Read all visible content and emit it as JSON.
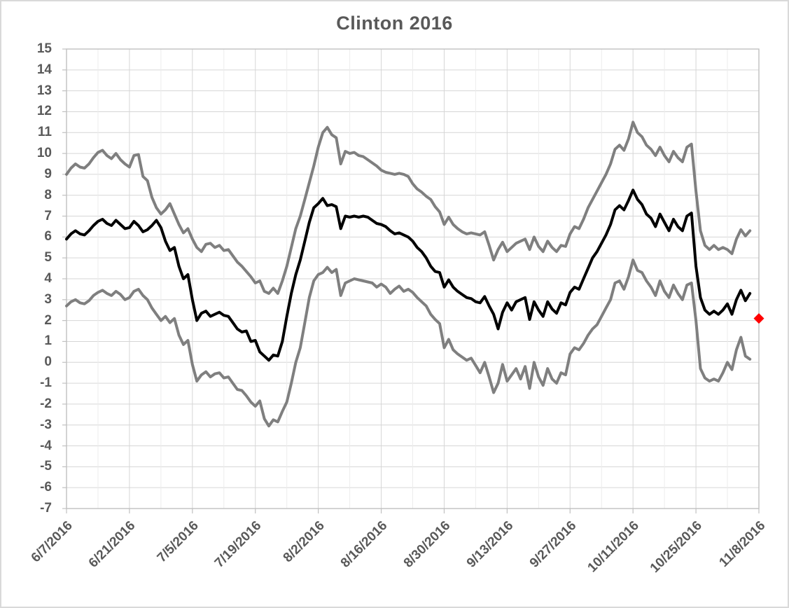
{
  "title": "Clinton 2016",
  "colors": {
    "line_black": "#000000",
    "line_gray": "#7f7f7f",
    "marker_red": "#ff0000",
    "grid_major": "#d6d6d6",
    "grid_minor": "#ececec",
    "axis_line": "#c0c0c0",
    "label_text": "#595959"
  },
  "chart_data": {
    "type": "line",
    "title": "Clinton 2016",
    "legend": false,
    "grid": true,
    "x_axis": {
      "start_date": "6/7/2016",
      "end_date": "11/8/2016",
      "total_days": 154,
      "tick_interval_days": 14,
      "minor_gridline_interval_days": 7,
      "tick_labels": [
        "6/7/2016",
        "6/21/2016",
        "7/5/2016",
        "7/19/2016",
        "8/2/2016",
        "8/16/2016",
        "8/30/2016",
        "9/13/2016",
        "9/27/2016",
        "10/11/2016",
        "10/25/2016",
        "11/8/2016"
      ]
    },
    "y_axis": {
      "min": -7,
      "max": 15,
      "tick_step": 1,
      "tick_labels": [
        "15",
        "14",
        "13",
        "12",
        "11",
        "10",
        "9",
        "8",
        "7",
        "6",
        "5",
        "4",
        "3",
        "2",
        "1",
        "0",
        "-1",
        "-2",
        "-3",
        "-4",
        "-5",
        "-6",
        "-7"
      ]
    },
    "series": [
      {
        "name": "upper_band",
        "color": "#7f7f7f",
        "start_date": "6/7/2016",
        "interval_days": 1,
        "values": [
          9.0,
          9.3,
          9.5,
          9.35,
          9.3,
          9.5,
          9.8,
          10.05,
          10.15,
          9.9,
          9.75,
          10.0,
          9.7,
          9.5,
          9.35,
          9.9,
          9.95,
          8.9,
          8.7,
          7.9,
          7.4,
          7.1,
          7.3,
          7.6,
          7.1,
          6.6,
          6.2,
          6.4,
          5.9,
          5.5,
          5.3,
          5.65,
          5.7,
          5.5,
          5.6,
          5.35,
          5.4,
          5.1,
          4.8,
          4.6,
          4.35,
          4.1,
          3.8,
          3.9,
          3.4,
          3.3,
          3.55,
          3.3,
          3.9,
          4.6,
          5.5,
          6.4,
          7.0,
          7.8,
          8.6,
          9.4,
          10.3,
          11.0,
          11.25,
          10.9,
          10.75,
          9.5,
          10.1,
          10.0,
          10.05,
          9.9,
          9.85,
          9.7,
          9.55,
          9.4,
          9.2,
          9.1,
          9.05,
          9.0,
          9.05,
          9.0,
          8.9,
          8.55,
          8.3,
          8.15,
          7.95,
          7.8,
          7.45,
          7.2,
          6.6,
          6.95,
          6.6,
          6.4,
          6.25,
          6.15,
          6.2,
          6.15,
          6.1,
          6.25,
          5.6,
          4.9,
          5.4,
          5.75,
          5.3,
          5.5,
          5.7,
          5.8,
          5.9,
          5.4,
          6.0,
          5.55,
          5.3,
          5.8,
          5.5,
          5.3,
          5.6,
          5.55,
          6.15,
          6.5,
          6.4,
          6.85,
          7.4,
          7.8,
          8.2,
          8.6,
          9.0,
          9.5,
          10.2,
          10.4,
          10.15,
          10.7,
          11.5,
          11.0,
          10.8,
          10.4,
          10.2,
          9.9,
          10.3,
          9.9,
          9.6,
          10.1,
          9.8,
          9.6,
          10.3,
          10.45,
          8.2,
          6.3,
          5.6,
          5.4,
          5.6,
          5.4,
          5.5,
          5.4,
          5.2,
          5.9,
          6.35,
          6.05,
          6.3
        ]
      },
      {
        "name": "average",
        "color": "#000000",
        "start_date": "6/7/2016",
        "interval_days": 1,
        "values": [
          5.9,
          6.15,
          6.3,
          6.15,
          6.1,
          6.3,
          6.55,
          6.75,
          6.85,
          6.65,
          6.55,
          6.8,
          6.6,
          6.4,
          6.45,
          6.75,
          6.55,
          6.25,
          6.35,
          6.55,
          6.8,
          6.45,
          5.8,
          5.35,
          5.5,
          4.6,
          4.0,
          4.2,
          3.0,
          2.0,
          2.35,
          2.45,
          2.2,
          2.3,
          2.4,
          2.25,
          2.2,
          1.9,
          1.6,
          1.45,
          1.5,
          1.0,
          1.05,
          0.5,
          0.3,
          0.1,
          0.35,
          0.3,
          1.0,
          2.2,
          3.3,
          4.2,
          4.9,
          5.8,
          6.7,
          7.4,
          7.6,
          7.85,
          7.5,
          7.55,
          7.45,
          6.4,
          7.0,
          6.95,
          7.0,
          6.95,
          7.0,
          6.95,
          6.8,
          6.65,
          6.6,
          6.5,
          6.3,
          6.15,
          6.2,
          6.1,
          6.0,
          5.8,
          5.5,
          5.3,
          5.0,
          4.6,
          4.35,
          4.3,
          3.6,
          3.95,
          3.6,
          3.4,
          3.25,
          3.1,
          3.05,
          2.9,
          2.85,
          3.15,
          2.7,
          2.3,
          1.6,
          2.4,
          2.85,
          2.5,
          2.9,
          3.0,
          3.1,
          2.05,
          2.9,
          2.5,
          2.2,
          2.9,
          2.55,
          2.35,
          2.85,
          2.75,
          3.35,
          3.6,
          3.5,
          4.0,
          4.5,
          5.0,
          5.3,
          5.7,
          6.1,
          6.6,
          7.3,
          7.5,
          7.3,
          7.75,
          8.25,
          7.8,
          7.55,
          7.1,
          6.9,
          6.5,
          7.1,
          6.7,
          6.3,
          6.85,
          6.5,
          6.3,
          7.0,
          7.15,
          4.6,
          3.1,
          2.5,
          2.3,
          2.45,
          2.3,
          2.5,
          2.8,
          2.3,
          3.0,
          3.45,
          2.95,
          3.3
        ]
      },
      {
        "name": "lower_band",
        "color": "#7f7f7f",
        "start_date": "6/7/2016",
        "interval_days": 1,
        "values": [
          2.7,
          2.9,
          3.0,
          2.85,
          2.8,
          2.95,
          3.2,
          3.35,
          3.45,
          3.3,
          3.2,
          3.4,
          3.25,
          3.0,
          3.1,
          3.4,
          3.5,
          3.2,
          3.0,
          2.6,
          2.3,
          2.0,
          2.2,
          1.9,
          2.1,
          1.3,
          0.85,
          1.05,
          -0.1,
          -0.9,
          -0.6,
          -0.45,
          -0.7,
          -0.55,
          -0.5,
          -0.75,
          -0.7,
          -1.0,
          -1.3,
          -1.35,
          -1.6,
          -1.9,
          -2.1,
          -1.85,
          -2.7,
          -3.05,
          -2.75,
          -2.85,
          -2.35,
          -1.9,
          -1.0,
          0.0,
          0.7,
          1.9,
          3.1,
          3.9,
          4.2,
          4.3,
          4.55,
          4.3,
          4.45,
          3.2,
          3.8,
          3.9,
          4.0,
          3.95,
          3.9,
          3.85,
          3.8,
          3.6,
          3.75,
          3.6,
          3.3,
          3.5,
          3.65,
          3.4,
          3.5,
          3.35,
          3.1,
          2.9,
          2.7,
          2.3,
          2.05,
          1.85,
          0.7,
          1.1,
          0.6,
          0.4,
          0.25,
          0.1,
          0.2,
          -0.15,
          -0.5,
          0.0,
          -0.7,
          -1.45,
          -1.0,
          -0.1,
          -0.9,
          -0.6,
          -0.3,
          -0.8,
          -0.2,
          -1.25,
          0.0,
          -0.7,
          -1.1,
          -0.3,
          -0.8,
          -1.0,
          -0.5,
          -0.6,
          0.4,
          0.7,
          0.6,
          0.9,
          1.3,
          1.6,
          1.8,
          2.2,
          2.6,
          3.0,
          3.8,
          3.9,
          3.5,
          4.1,
          4.9,
          4.4,
          4.3,
          3.9,
          3.6,
          3.2,
          3.9,
          3.4,
          3.1,
          3.7,
          3.3,
          3.0,
          3.7,
          3.8,
          2.0,
          -0.3,
          -0.75,
          -0.9,
          -0.8,
          -0.9,
          -0.5,
          0.0,
          -0.35,
          0.6,
          1.2,
          0.3,
          0.15
        ]
      }
    ],
    "marker": {
      "name": "actual_result",
      "shape": "diamond",
      "color": "#ff0000",
      "date": "11/8/2016",
      "day_index": 154,
      "value": 2.1
    }
  }
}
